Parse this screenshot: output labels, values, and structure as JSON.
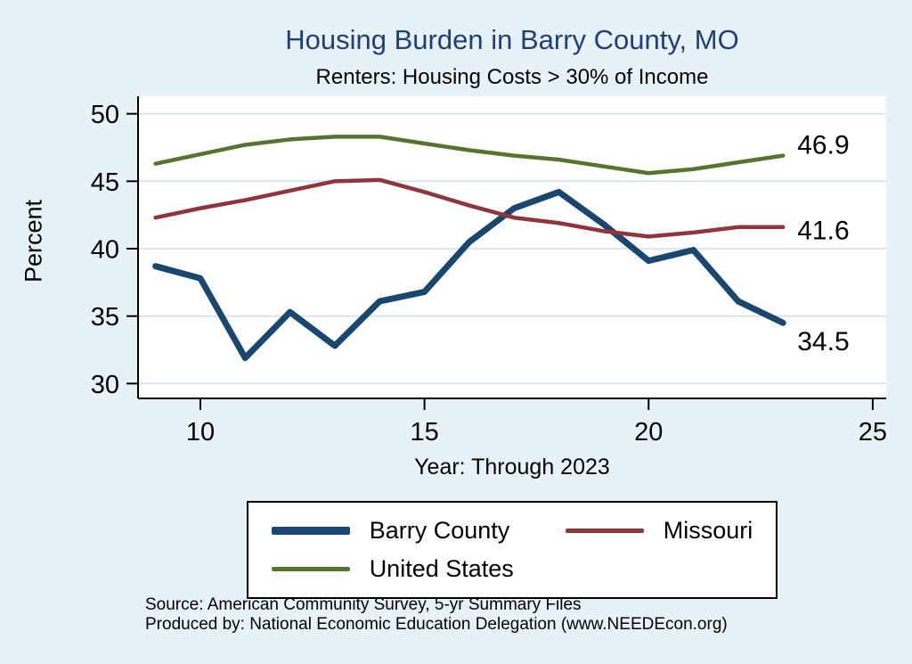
{
  "title": "Housing Burden in Barry County, MO",
  "subtitle": "Renters: Housing Costs > 30% of Income",
  "ylabel": "Percent",
  "xlabel": "Year: Through 2023",
  "source_line1": "Source: American Community Survey, 5-yr Summary Files",
  "source_line2": "Produced by: National Economic Education Delegation (www.NEEDEcon.org)",
  "colors": {
    "background": "#e7f1f8",
    "plot_bg": "#ffffff",
    "grid": "#cfe2ef",
    "title": "#1f3f77",
    "barry": "#1a476f",
    "missouri": "#90353b",
    "us": "#55752f"
  },
  "chart_data": {
    "type": "line",
    "title": "Housing Burden in Barry County, MO",
    "subtitle": "Renters: Housing Costs > 30% of Income",
    "xlabel": "Year: Through 2023",
    "ylabel": "Percent",
    "grid": true,
    "legend_position": "bottom",
    "x": [
      9,
      10,
      11,
      12,
      13,
      14,
      15,
      16,
      17,
      18,
      19,
      20,
      21,
      22,
      23
    ],
    "x_ticks": [
      10,
      15,
      20,
      25
    ],
    "y_ticks": [
      30,
      35,
      40,
      45,
      50
    ],
    "xlim": [
      8.61,
      25.3
    ],
    "ylim": [
      28.9,
      51.3
    ],
    "series": [
      {
        "name": "Barry County",
        "color_key": "barry",
        "width": 7,
        "end_label": "34.5",
        "values": [
          38.7,
          37.8,
          31.9,
          35.3,
          32.8,
          36.1,
          36.8,
          40.5,
          43.0,
          44.2,
          41.8,
          39.1,
          39.9,
          36.1,
          34.5
        ]
      },
      {
        "name": "Missouri",
        "color_key": "missouri",
        "width": 4.5,
        "end_label": "41.6",
        "values": [
          42.3,
          43.0,
          43.6,
          44.3,
          45.0,
          45.1,
          44.2,
          43.2,
          42.3,
          41.9,
          41.3,
          40.9,
          41.2,
          41.6,
          41.6
        ]
      },
      {
        "name": "United States",
        "color_key": "us",
        "width": 4.5,
        "end_label": "46.9",
        "values": [
          46.3,
          47.0,
          47.7,
          48.1,
          48.3,
          48.3,
          47.8,
          47.3,
          46.9,
          46.6,
          46.1,
          45.6,
          45.9,
          46.4,
          46.9
        ]
      }
    ]
  },
  "legend": {
    "items": [
      "Barry County",
      "Missouri",
      "United States"
    ]
  }
}
